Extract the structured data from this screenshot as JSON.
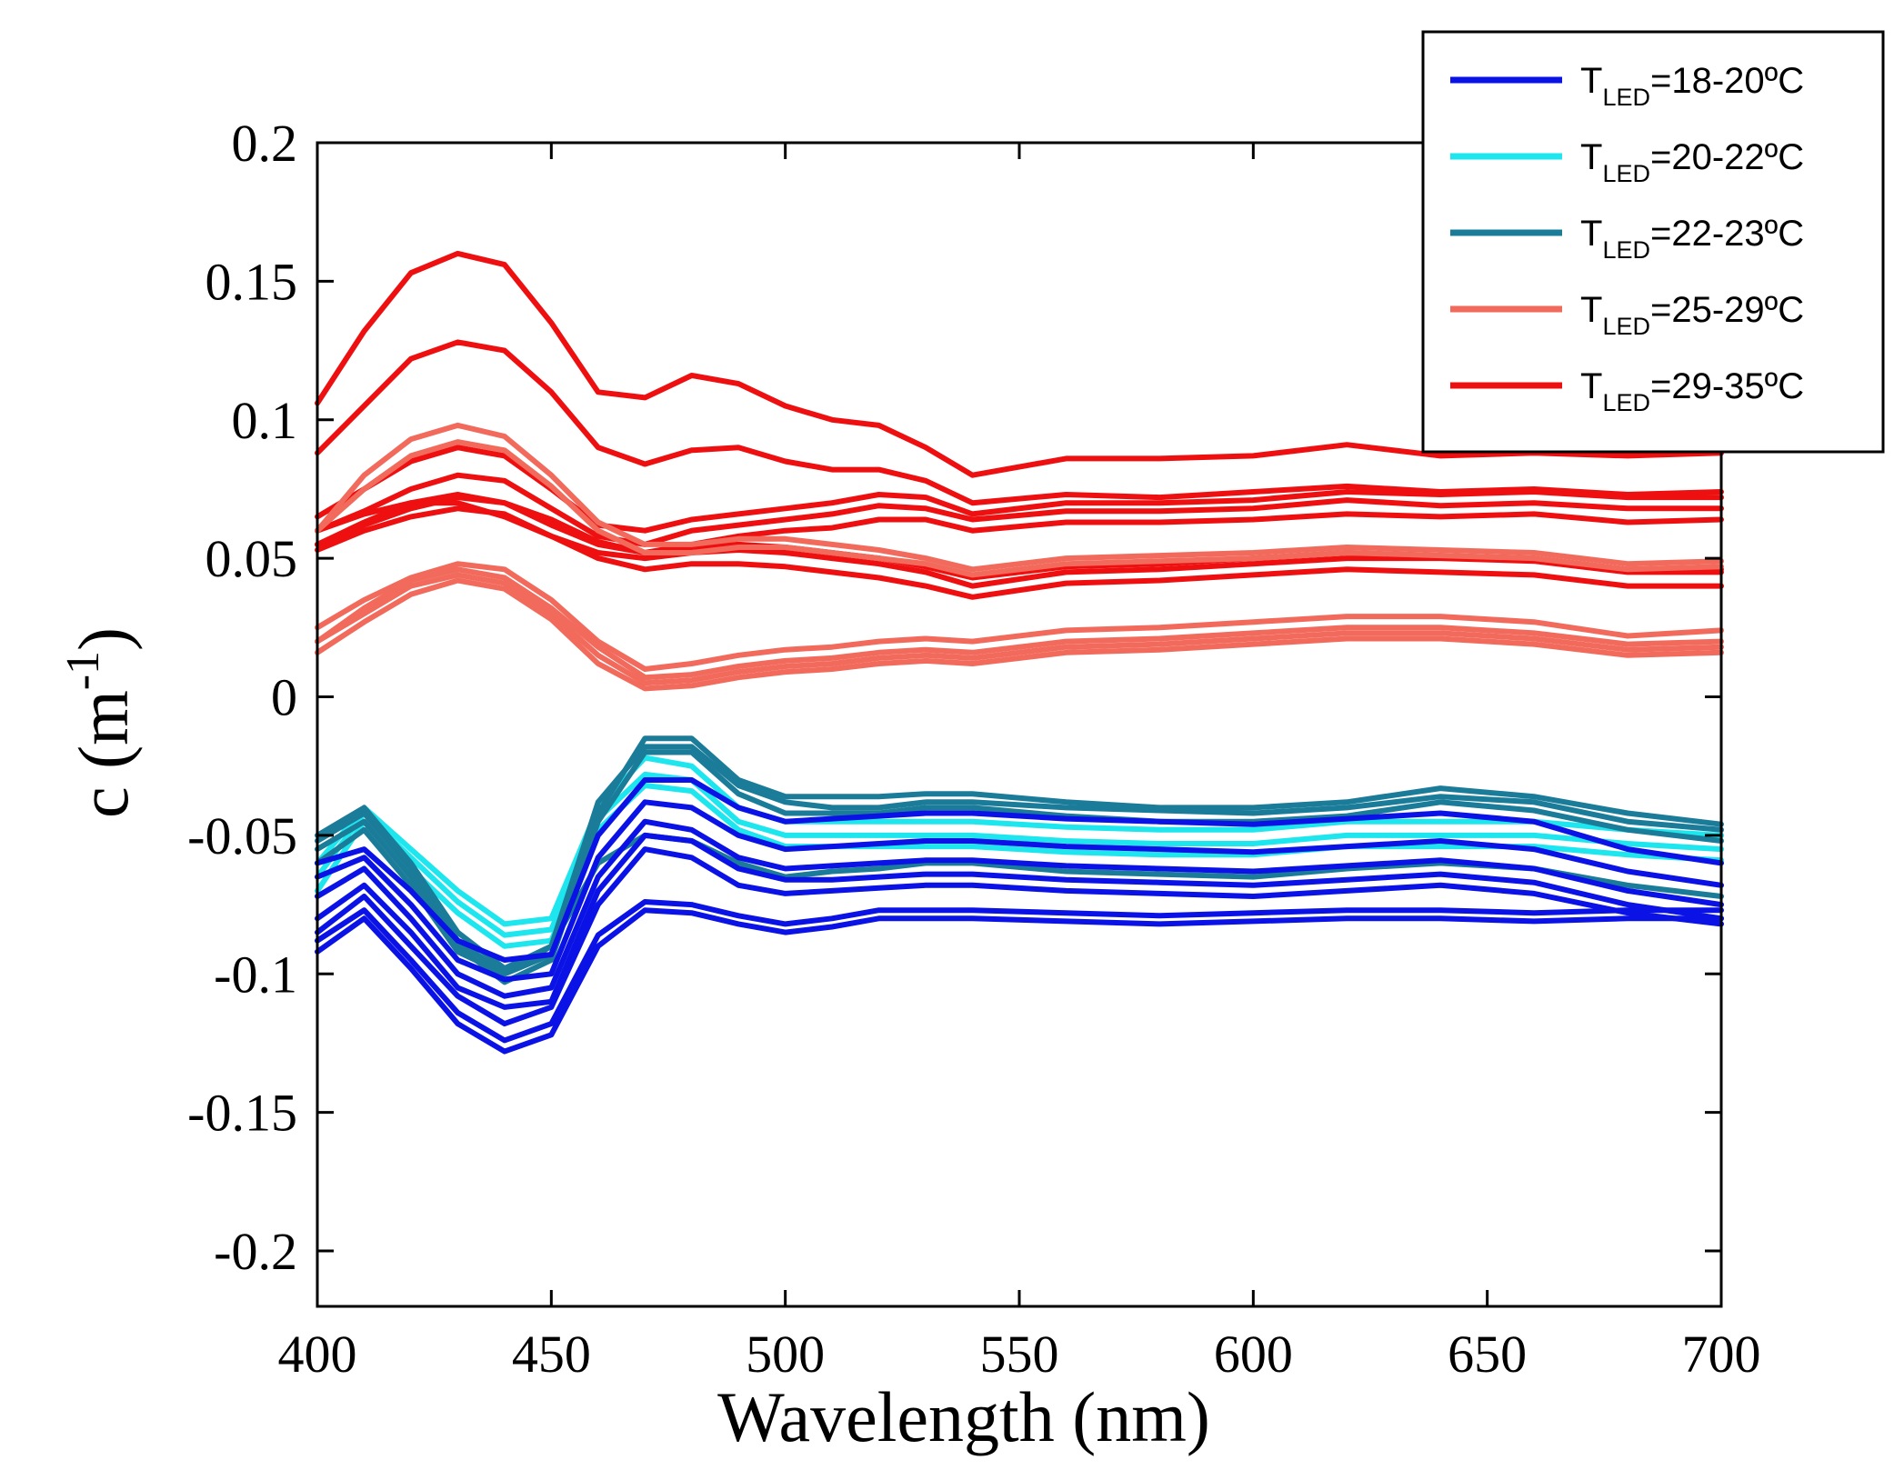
{
  "chart_data": {
    "type": "line",
    "title": "",
    "xlabel": "Wavelength (nm)",
    "ylabel_base": "c (m",
    "ylabel_sup": "-1",
    "ylabel_close": ")",
    "xlim": [
      400,
      700
    ],
    "ylim": [
      -0.22,
      0.2
    ],
    "xticks": [
      400,
      450,
      500,
      550,
      600,
      650,
      700
    ],
    "xtick_labels": [
      "400",
      "450",
      "500",
      "550",
      "600",
      "650",
      "700"
    ],
    "yticks": [
      0.2,
      0.15,
      0.1,
      0.05,
      0,
      -0.05,
      -0.1,
      -0.15,
      -0.2
    ],
    "ytick_labels": [
      "0.2",
      "0.15",
      "0.1",
      "0.05",
      "0",
      "-0.05",
      "-0.1",
      "-0.15",
      "-0.2"
    ],
    "grid": false,
    "legend_position": "top-right",
    "x": [
      400,
      410,
      420,
      430,
      440,
      450,
      460,
      470,
      480,
      490,
      500,
      510,
      520,
      530,
      540,
      560,
      580,
      600,
      620,
      640,
      660,
      680,
      700
    ],
    "groups": [
      {
        "name": "T_LED=18-20ºC",
        "color": "#0a12e6",
        "label_main": "T",
        "label_sub": "LED",
        "label_rest": "=18-20ºC"
      },
      {
        "name": "T_LED=20-22ºC",
        "color": "#1ee6ee",
        "label_main": "T",
        "label_sub": "LED",
        "label_rest": "=20-22ºC"
      },
      {
        "name": "T_LED=22-23ºC",
        "color": "#1b7c9a",
        "label_main": "T",
        "label_sub": "LED",
        "label_rest": "=22-23ºC"
      },
      {
        "name": "T_LED=25-29ºC",
        "color": "#f26a5c",
        "label_main": "T",
        "label_sub": "LED",
        "label_rest": "=25-29ºC"
      },
      {
        "name": "T_LED=29-35ºC",
        "color": "#ee1010",
        "label_main": "T",
        "label_sub": "LED",
        "label_rest": "=29-35ºC"
      }
    ],
    "series": [
      {
        "group": 4,
        "values": [
          0.106,
          0.132,
          0.153,
          0.16,
          0.156,
          0.135,
          0.11,
          0.108,
          0.116,
          0.113,
          0.105,
          0.1,
          0.098,
          0.09,
          0.08,
          0.086,
          0.086,
          0.087,
          0.091,
          0.087,
          0.088,
          0.087,
          0.088
        ]
      },
      {
        "group": 4,
        "values": [
          0.088,
          0.105,
          0.122,
          0.128,
          0.125,
          0.11,
          0.09,
          0.084,
          0.089,
          0.09,
          0.085,
          0.082,
          0.082,
          0.078,
          0.07,
          0.073,
          0.072,
          0.074,
          0.076,
          0.074,
          0.075,
          0.073,
          0.074
        ]
      },
      {
        "group": 4,
        "values": [
          0.065,
          0.075,
          0.085,
          0.09,
          0.087,
          0.075,
          0.062,
          0.06,
          0.064,
          0.066,
          0.068,
          0.07,
          0.073,
          0.072,
          0.066,
          0.07,
          0.07,
          0.071,
          0.074,
          0.073,
          0.074,
          0.072,
          0.072
        ]
      },
      {
        "group": 4,
        "values": [
          0.06,
          0.067,
          0.075,
          0.08,
          0.078,
          0.068,
          0.058,
          0.055,
          0.06,
          0.062,
          0.064,
          0.066,
          0.069,
          0.068,
          0.064,
          0.067,
          0.067,
          0.068,
          0.071,
          0.069,
          0.07,
          0.068,
          0.068
        ]
      },
      {
        "group": 4,
        "values": [
          0.055,
          0.063,
          0.07,
          0.073,
          0.07,
          0.062,
          0.055,
          0.052,
          0.055,
          0.058,
          0.06,
          0.061,
          0.064,
          0.064,
          0.06,
          0.063,
          0.063,
          0.064,
          0.066,
          0.065,
          0.066,
          0.063,
          0.064
        ]
      },
      {
        "group": 4,
        "values": [
          0.06,
          0.066,
          0.07,
          0.07,
          0.065,
          0.058,
          0.052,
          0.05,
          0.052,
          0.053,
          0.052,
          0.05,
          0.048,
          0.045,
          0.04,
          0.045,
          0.046,
          0.048,
          0.05,
          0.05,
          0.049,
          0.045,
          0.045
        ]
      },
      {
        "group": 4,
        "values": [
          0.055,
          0.062,
          0.068,
          0.072,
          0.07,
          0.064,
          0.056,
          0.052,
          0.054,
          0.055,
          0.054,
          0.052,
          0.05,
          0.047,
          0.043,
          0.047,
          0.048,
          0.05,
          0.052,
          0.051,
          0.05,
          0.046,
          0.046
        ]
      },
      {
        "group": 4,
        "values": [
          0.053,
          0.06,
          0.065,
          0.068,
          0.066,
          0.058,
          0.05,
          0.046,
          0.048,
          0.048,
          0.047,
          0.045,
          0.043,
          0.04,
          0.036,
          0.041,
          0.042,
          0.044,
          0.046,
          0.045,
          0.044,
          0.04,
          0.04
        ]
      },
      {
        "group": 3,
        "values": [
          0.06,
          0.08,
          0.093,
          0.098,
          0.094,
          0.08,
          0.063,
          0.055,
          0.055,
          0.057,
          0.057,
          0.055,
          0.053,
          0.05,
          0.046,
          0.05,
          0.051,
          0.052,
          0.054,
          0.053,
          0.052,
          0.048,
          0.049
        ]
      },
      {
        "group": 3,
        "values": [
          0.06,
          0.075,
          0.087,
          0.092,
          0.089,
          0.076,
          0.06,
          0.052,
          0.052,
          0.054,
          0.054,
          0.052,
          0.05,
          0.048,
          0.044,
          0.048,
          0.049,
          0.05,
          0.052,
          0.051,
          0.05,
          0.046,
          0.047
        ]
      },
      {
        "group": 3,
        "values": [
          0.025,
          0.035,
          0.043,
          0.048,
          0.046,
          0.035,
          0.02,
          0.01,
          0.012,
          0.015,
          0.017,
          0.018,
          0.02,
          0.021,
          0.02,
          0.024,
          0.025,
          0.027,
          0.029,
          0.029,
          0.027,
          0.022,
          0.024
        ]
      },
      {
        "group": 3,
        "values": [
          0.02,
          0.032,
          0.042,
          0.046,
          0.043,
          0.032,
          0.018,
          0.007,
          0.008,
          0.011,
          0.013,
          0.014,
          0.016,
          0.017,
          0.016,
          0.02,
          0.021,
          0.023,
          0.025,
          0.025,
          0.023,
          0.019,
          0.02
        ]
      },
      {
        "group": 3,
        "values": [
          0.02,
          0.03,
          0.04,
          0.044,
          0.041,
          0.03,
          0.015,
          0.005,
          0.006,
          0.009,
          0.011,
          0.012,
          0.014,
          0.015,
          0.014,
          0.018,
          0.019,
          0.021,
          0.023,
          0.023,
          0.021,
          0.017,
          0.018
        ]
      },
      {
        "group": 3,
        "values": [
          0.016,
          0.027,
          0.037,
          0.042,
          0.039,
          0.028,
          0.012,
          0.003,
          0.004,
          0.007,
          0.009,
          0.01,
          0.012,
          0.013,
          0.012,
          0.016,
          0.017,
          0.019,
          0.021,
          0.021,
          0.019,
          0.015,
          0.016
        ]
      },
      {
        "group": 1,
        "values": [
          -0.06,
          -0.04,
          -0.055,
          -0.07,
          -0.082,
          -0.08,
          -0.04,
          -0.022,
          -0.025,
          -0.04,
          -0.045,
          -0.045,
          -0.045,
          -0.045,
          -0.045,
          -0.047,
          -0.048,
          -0.048,
          -0.045,
          -0.045,
          -0.045,
          -0.048,
          -0.05
        ]
      },
      {
        "group": 1,
        "values": [
          -0.065,
          -0.042,
          -0.058,
          -0.074,
          -0.086,
          -0.084,
          -0.044,
          -0.028,
          -0.03,
          -0.045,
          -0.05,
          -0.05,
          -0.05,
          -0.05,
          -0.05,
          -0.052,
          -0.053,
          -0.053,
          -0.05,
          -0.05,
          -0.05,
          -0.053,
          -0.055
        ]
      },
      {
        "group": 1,
        "values": [
          -0.07,
          -0.045,
          -0.062,
          -0.078,
          -0.09,
          -0.088,
          -0.048,
          -0.032,
          -0.034,
          -0.048,
          -0.054,
          -0.054,
          -0.054,
          -0.054,
          -0.054,
          -0.056,
          -0.057,
          -0.057,
          -0.054,
          -0.054,
          -0.054,
          -0.057,
          -0.059
        ]
      },
      {
        "group": 2,
        "values": [
          -0.05,
          -0.04,
          -0.06,
          -0.085,
          -0.098,
          -0.09,
          -0.038,
          -0.018,
          -0.018,
          -0.032,
          -0.038,
          -0.04,
          -0.04,
          -0.038,
          -0.038,
          -0.04,
          -0.041,
          -0.042,
          -0.04,
          -0.036,
          -0.038,
          -0.045,
          -0.048
        ]
      },
      {
        "group": 2,
        "values": [
          -0.052,
          -0.042,
          -0.062,
          -0.088,
          -0.1,
          -0.093,
          -0.042,
          -0.015,
          -0.015,
          -0.03,
          -0.036,
          -0.036,
          -0.036,
          -0.035,
          -0.035,
          -0.038,
          -0.04,
          -0.04,
          -0.038,
          -0.033,
          -0.036,
          -0.042,
          -0.046
        ]
      },
      {
        "group": 2,
        "values": [
          -0.055,
          -0.045,
          -0.065,
          -0.09,
          -0.103,
          -0.095,
          -0.045,
          -0.02,
          -0.02,
          -0.035,
          -0.042,
          -0.042,
          -0.042,
          -0.04,
          -0.04,
          -0.043,
          -0.045,
          -0.045,
          -0.043,
          -0.038,
          -0.041,
          -0.048,
          -0.052
        ]
      },
      {
        "group": 2,
        "values": [
          -0.06,
          -0.048,
          -0.068,
          -0.092,
          -0.1,
          -0.09,
          -0.06,
          -0.05,
          -0.052,
          -0.06,
          -0.065,
          -0.063,
          -0.062,
          -0.06,
          -0.06,
          -0.063,
          -0.064,
          -0.065,
          -0.062,
          -0.06,
          -0.062,
          -0.068,
          -0.072
        ]
      },
      {
        "group": 0,
        "values": [
          -0.06,
          -0.055,
          -0.07,
          -0.088,
          -0.095,
          -0.093,
          -0.05,
          -0.03,
          -0.03,
          -0.04,
          -0.045,
          -0.044,
          -0.043,
          -0.042,
          -0.042,
          -0.044,
          -0.045,
          -0.046,
          -0.044,
          -0.042,
          -0.045,
          -0.055,
          -0.06
        ]
      },
      {
        "group": 0,
        "values": [
          -0.065,
          -0.058,
          -0.075,
          -0.095,
          -0.102,
          -0.1,
          -0.058,
          -0.038,
          -0.04,
          -0.05,
          -0.055,
          -0.054,
          -0.053,
          -0.052,
          -0.052,
          -0.054,
          -0.055,
          -0.056,
          -0.054,
          -0.052,
          -0.055,
          -0.063,
          -0.068
        ]
      },
      {
        "group": 0,
        "values": [
          -0.072,
          -0.062,
          -0.08,
          -0.1,
          -0.108,
          -0.105,
          -0.065,
          -0.045,
          -0.048,
          -0.058,
          -0.062,
          -0.061,
          -0.06,
          -0.059,
          -0.059,
          -0.061,
          -0.062,
          -0.063,
          -0.061,
          -0.059,
          -0.062,
          -0.07,
          -0.075
        ]
      },
      {
        "group": 0,
        "values": [
          -0.08,
          -0.068,
          -0.085,
          -0.105,
          -0.112,
          -0.11,
          -0.07,
          -0.05,
          -0.052,
          -0.062,
          -0.066,
          -0.066,
          -0.065,
          -0.064,
          -0.064,
          -0.066,
          -0.067,
          -0.068,
          -0.066,
          -0.064,
          -0.067,
          -0.075,
          -0.08
        ]
      },
      {
        "group": 0,
        "values": [
          -0.085,
          -0.072,
          -0.09,
          -0.108,
          -0.118,
          -0.112,
          -0.075,
          -0.055,
          -0.058,
          -0.068,
          -0.071,
          -0.07,
          -0.069,
          -0.068,
          -0.068,
          -0.07,
          -0.071,
          -0.072,
          -0.07,
          -0.068,
          -0.071,
          -0.078,
          -0.082
        ]
      },
      {
        "group": 0,
        "values": [
          -0.092,
          -0.08,
          -0.098,
          -0.118,
          -0.128,
          -0.122,
          -0.09,
          -0.077,
          -0.078,
          -0.082,
          -0.085,
          -0.083,
          -0.08,
          -0.08,
          -0.08,
          -0.081,
          -0.082,
          -0.081,
          -0.08,
          -0.08,
          -0.081,
          -0.08,
          -0.08
        ]
      },
      {
        "group": 0,
        "values": [
          -0.088,
          -0.077,
          -0.095,
          -0.114,
          -0.124,
          -0.118,
          -0.086,
          -0.074,
          -0.075,
          -0.079,
          -0.082,
          -0.08,
          -0.077,
          -0.077,
          -0.077,
          -0.078,
          -0.079,
          -0.078,
          -0.077,
          -0.077,
          -0.078,
          -0.077,
          -0.077
        ]
      }
    ]
  }
}
